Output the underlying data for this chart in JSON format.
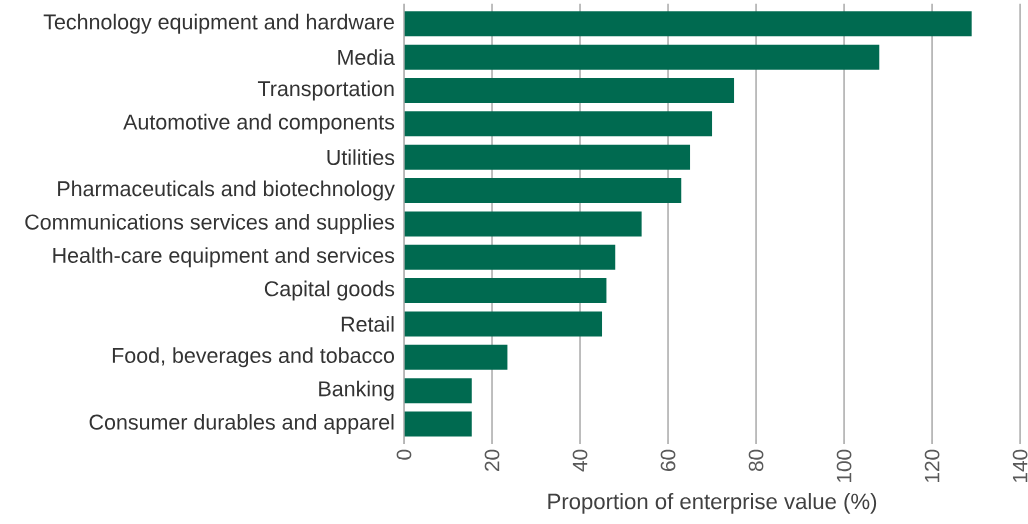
{
  "chart_data": {
    "type": "bar",
    "orientation": "horizontal",
    "xlabel": "Proportion of enterprise value (%)",
    "categories": [
      "Technology equipment and hardware",
      "Media",
      "Transportation",
      "Automotive and components",
      "Utilities",
      "Pharmaceuticals and biotechnology",
      "Communications services and supplies",
      "Health-care equipment and services",
      "Capital goods",
      "Retail",
      "Food, beverages and tobacco",
      "Banking",
      "Consumer durables and apparel"
    ],
    "values": [
      129,
      108,
      75,
      70,
      65,
      63,
      54,
      48,
      46,
      45,
      23.5,
      15.4,
      15.4
    ],
    "color": "#006a50",
    "xlim": [
      0,
      140
    ],
    "xticks": [
      0,
      20,
      40,
      60,
      80,
      100,
      120,
      140
    ],
    "grid": "x"
  }
}
